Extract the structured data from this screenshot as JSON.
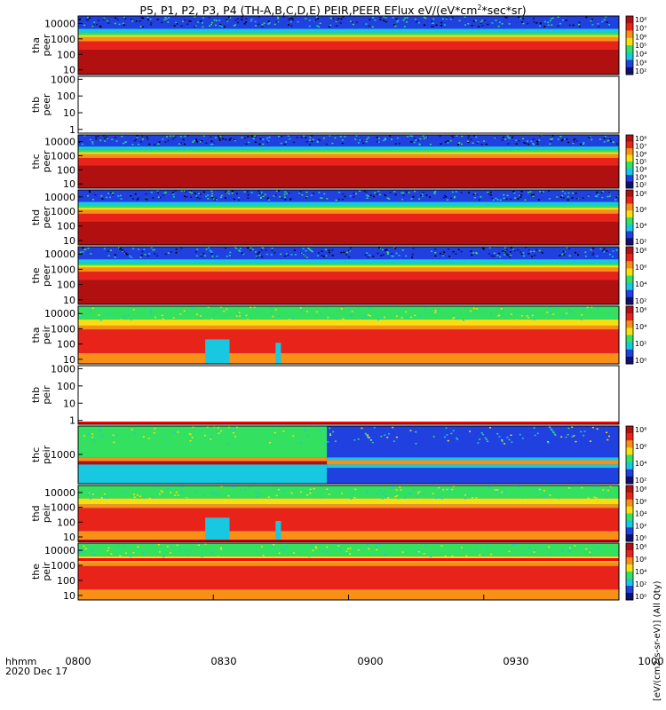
{
  "title": "P5, P1, P2, P3, P4 (TH-A,B,C,D,E) PEIR,PEER EFlux eV/(eV*cm",
  "title_sup": "2",
  "title_tail": "*sec*sr)",
  "footer": {
    "line1": "hhmm",
    "line2": "2020 Dec 17"
  },
  "colorbar_title": "[eV/(cm2-s-sr-eV)] (All Qty)",
  "colors": {
    "deep_red": "#b01010",
    "red": "#e8241a",
    "orange": "#f89018",
    "yellow": "#f8e010",
    "green": "#34e060",
    "cyan": "#18c8e0",
    "blue": "#2040e0",
    "navy": "#101070"
  },
  "chart_data": {
    "type": "heatmap",
    "x_axis": {
      "range": [
        "0800",
        "1000"
      ],
      "ticks": [
        "0800",
        "0830",
        "0900",
        "0930",
        "1000"
      ]
    },
    "panels": [
      {
        "label_top": "tha",
        "label_bottom": "peer",
        "yticks": [
          "10",
          "100",
          "1000",
          "10000"
        ],
        "ylim": [
          5,
          30000
        ],
        "log": true,
        "cbar_ticks": [
          "10⁸",
          "10⁷",
          "10⁶",
          "10⁵",
          "10⁴",
          "10³",
          "10²"
        ],
        "has_colorbar": true
      },
      {
        "label_top": "thb",
        "label_bottom": "peer",
        "yticks": [
          "1",
          "10",
          "100",
          "1000"
        ],
        "ylim": [
          0.6,
          1500
        ],
        "log": true,
        "has_colorbar": false
      },
      {
        "label_top": "thc",
        "label_bottom": "peer",
        "yticks": [
          "10",
          "100",
          "1000",
          "10000"
        ],
        "ylim": [
          5,
          30000
        ],
        "log": true,
        "cbar_ticks": [
          "10⁸",
          "10⁷",
          "10⁶",
          "10⁵",
          "10⁴",
          "10³",
          "10²"
        ],
        "has_colorbar": true
      },
      {
        "label_top": "thd",
        "label_bottom": "peer",
        "yticks": [
          "10",
          "100",
          "1000",
          "10000"
        ],
        "ylim": [
          5,
          30000
        ],
        "log": true,
        "cbar_ticks": [
          "10⁸",
          "10⁶",
          "10⁴",
          "10²"
        ],
        "has_colorbar": true
      },
      {
        "label_top": "the",
        "label_bottom": "peer",
        "yticks": [
          "10",
          "100",
          "1000",
          "10000"
        ],
        "ylim": [
          5,
          30000
        ],
        "log": true,
        "cbar_ticks": [
          "10⁸",
          "10⁶",
          "10⁴",
          "10²"
        ],
        "has_colorbar": true
      },
      {
        "label_top": "tha",
        "label_bottom": "peir",
        "yticks": [
          "10",
          "100",
          "1000",
          "10000"
        ],
        "ylim": [
          5,
          30000
        ],
        "log": true,
        "cbar_ticks": [
          "10⁶",
          "10⁴",
          "10²",
          "10⁰"
        ],
        "has_colorbar": true
      },
      {
        "label_top": "thb",
        "label_bottom": "peir",
        "yticks": [
          "1",
          "10",
          "100",
          "1000"
        ],
        "ylim": [
          0.6,
          1500
        ],
        "log": true,
        "has_colorbar": false
      },
      {
        "label_top": "thc",
        "label_bottom": "peir",
        "yticks": [
          "1000"
        ],
        "ylim": [
          30,
          30000
        ],
        "log": true,
        "cbar_ticks": [
          "10⁸",
          "10⁶",
          "10⁴",
          "10²"
        ],
        "has_colorbar": true
      },
      {
        "label_top": "thd",
        "label_bottom": "peir",
        "yticks": [
          "10",
          "100",
          "1000",
          "10000"
        ],
        "ylim": [
          5,
          30000
        ],
        "log": true,
        "cbar_ticks": [
          "10⁸",
          "10⁶",
          "10⁴",
          "10²",
          "10⁰"
        ],
        "has_colorbar": true
      },
      {
        "label_top": "the",
        "label_bottom": "peir",
        "yticks": [
          "10",
          "100",
          "1000",
          "10000"
        ],
        "ylim": [
          5,
          30000
        ],
        "log": true,
        "cbar_ticks": [
          "10⁸",
          "10⁶",
          "10⁴",
          "10²",
          "10⁰"
        ],
        "has_colorbar": true
      }
    ]
  }
}
